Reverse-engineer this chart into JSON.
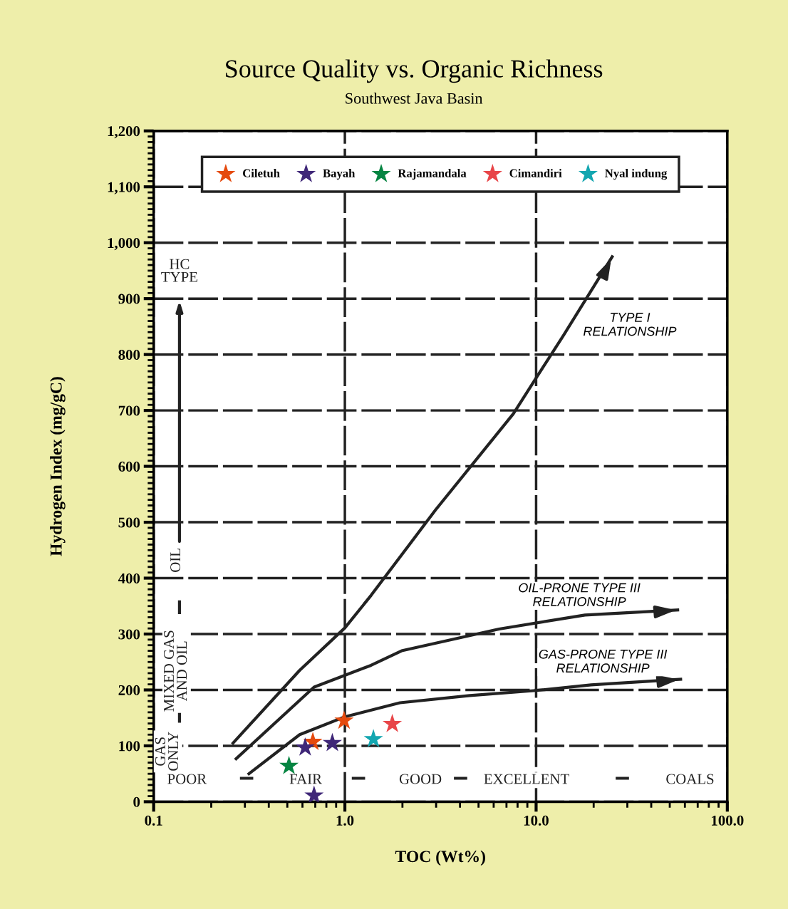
{
  "chart_data": {
    "type": "scatter",
    "title": "Source Quality vs. Organic Richness",
    "subtitle": "Southwest Java Basin",
    "xlabel": "TOC (Wt%)",
    "ylabel": "Hydrogen Index (mg/gC)",
    "log": "x",
    "grid": true,
    "legend": "top",
    "marker": "star",
    "xlim": [
      0.1,
      100
    ],
    "xticks": [
      {
        "value": 0.1,
        "label": "0.1"
      },
      {
        "value": 1,
        "label": "1.0"
      },
      {
        "value": 10,
        "label": "10.0"
      },
      {
        "value": 100,
        "label": "100.0"
      }
    ],
    "ylim": [
      0,
      1200
    ],
    "yticks": [
      0,
      100,
      200,
      300,
      400,
      500,
      600,
      700,
      800,
      900,
      {
        "value": 1000,
        "label": "1,000"
      },
      {
        "value": 1100,
        "label": "1,100"
      },
      {
        "value": 1200,
        "label": "1,200"
      }
    ],
    "series": [
      {
        "name": "Ciletuh",
        "color": "#e54a0e",
        "x": [
          0.68,
          0.99
        ],
        "values": [
          107,
          145
        ]
      },
      {
        "name": "Bayah",
        "color": "#3f2778",
        "x": [
          0.62,
          0.86,
          0.69
        ],
        "values": [
          97,
          105,
          11
        ]
      },
      {
        "name": "Rajamandala",
        "color": "#068542",
        "x": [
          0.51
        ],
        "values": [
          64
        ]
      },
      {
        "name": "Cimandiri",
        "color": "#e84649",
        "x": [
          1.77
        ],
        "values": [
          139
        ]
      },
      {
        "name": "Nyal indung",
        "color": "#13a6b0",
        "x": [
          1.41
        ],
        "values": [
          112
        ]
      },
      {
        "type": "line",
        "marker": "none",
        "color": "#222222",
        "x": [
          0.26,
          0.58,
          1.0,
          1.37,
          2.98,
          7.6,
          10,
          13.9,
          25
        ],
        "values": [
          105,
          235,
          311,
          369,
          522,
          694,
          758,
          834,
          975
        ]
      },
      {
        "type": "line",
        "marker": "none",
        "color": "#222222",
        "x": [
          0.27,
          0.69,
          1.37,
          1.98,
          6.4,
          18,
          55
        ],
        "values": [
          77,
          205,
          244,
          270,
          309,
          334,
          343
        ]
      },
      {
        "type": "line",
        "marker": "none",
        "color": "#222222",
        "x": [
          0.315,
          0.58,
          1.0,
          1.94,
          4.5,
          10,
          19.4,
          57
        ],
        "values": [
          50,
          120,
          152,
          177,
          190,
          199,
          209,
          219
        ]
      }
    ],
    "annotations": [
      "TYPE I\nRELATIONSHIP",
      "OIL-PRONE TYPE III\nRELATIONSHIP",
      "GAS-PRONE TYPE III\nRELATIONSHIP",
      "HC\nTYPE",
      "GAS\nONLY",
      "MIXED GAS\nAND OIL",
      "OIL",
      "POOR",
      "FAIR",
      "GOOD",
      "EXCELLENT",
      "COALS"
    ]
  }
}
